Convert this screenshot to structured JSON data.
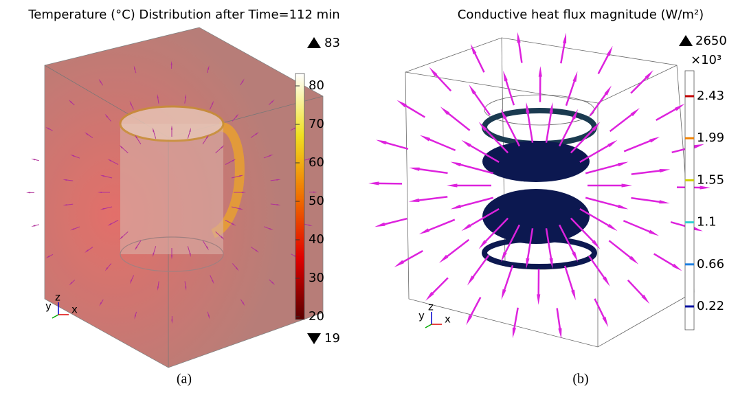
{
  "panels": [
    {
      "title": "Temperature (°C) Distribution after Time=112 min",
      "max_label": 83,
      "min_label": 19,
      "colorbar_ticks": [
        80,
        70,
        60,
        50,
        40,
        30,
        20
      ],
      "axes": [
        "y",
        "z",
        "x"
      ],
      "caption": "(a)"
    },
    {
      "title": "Conductive heat flux magnitude (W/m²)",
      "max_label": 2650,
      "multiplier": "×10³",
      "colorbar_ticks": [
        2.43,
        1.99,
        1.55,
        1.1,
        0.66,
        0.22
      ],
      "axes": [
        "y",
        "z",
        "x"
      ],
      "caption": "(b)"
    }
  ]
}
